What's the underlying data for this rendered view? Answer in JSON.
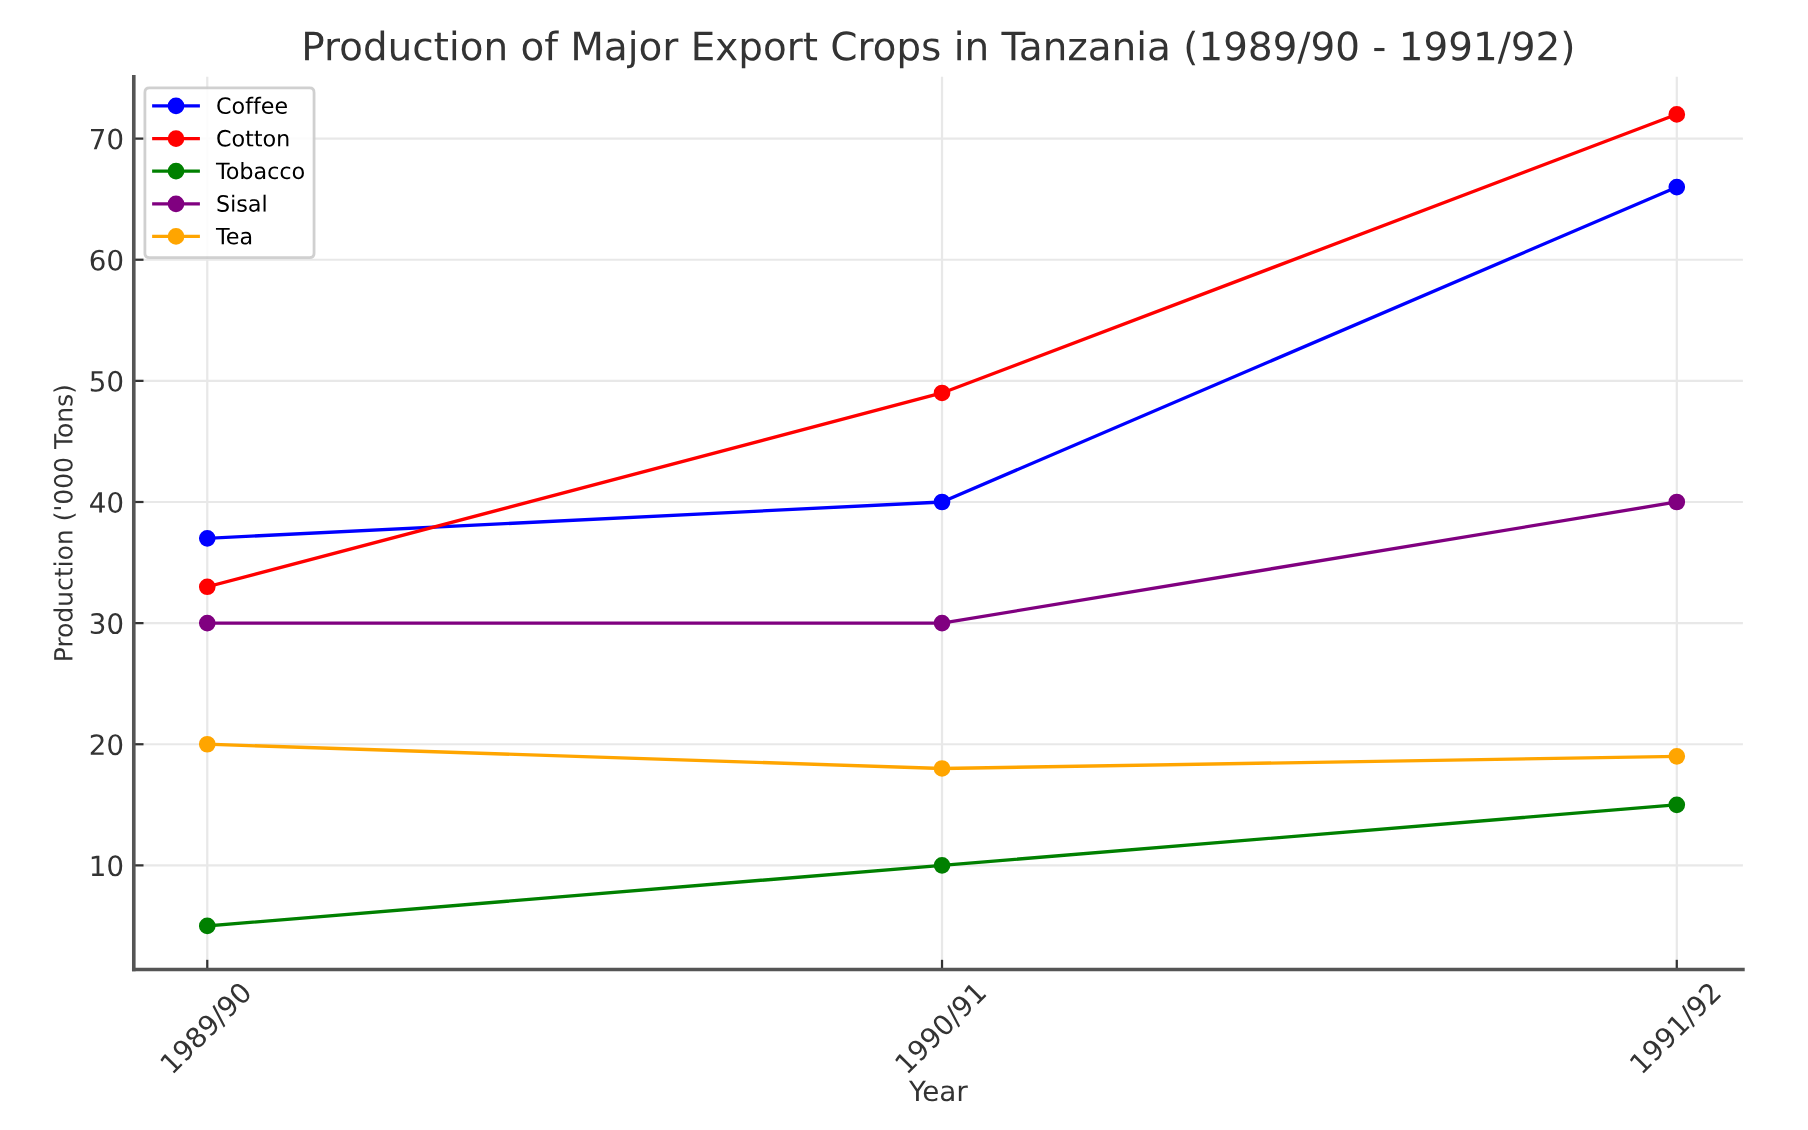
{
  "chart_data": {
    "type": "line",
    "title": "Production of Major Export Crops in Tanzania (1989/90 - 1991/92)",
    "xlabel": "Year",
    "ylabel": "Production ('000 Tons)",
    "categories": [
      "1989/90",
      "1990/91",
      "1991/92"
    ],
    "series": [
      {
        "name": "Coffee",
        "color": "#0000ff",
        "values": [
          37,
          40,
          66
        ]
      },
      {
        "name": "Cotton",
        "color": "#ff0000",
        "values": [
          33,
          49,
          72
        ]
      },
      {
        "name": "Tobacco",
        "color": "#008000",
        "values": [
          5,
          10,
          15
        ]
      },
      {
        "name": "Sisal",
        "color": "#800080",
        "values": [
          30,
          30,
          40
        ]
      },
      {
        "name": "Tea",
        "color": "#ffa500",
        "values": [
          20,
          18,
          19
        ]
      }
    ],
    "ylim": [
      1.4,
      75.1
    ],
    "yticks": [
      10,
      20,
      30,
      40,
      50,
      60,
      70
    ],
    "grid": true,
    "legend": "top left",
    "marker": "circle",
    "line_style": "solid"
  }
}
